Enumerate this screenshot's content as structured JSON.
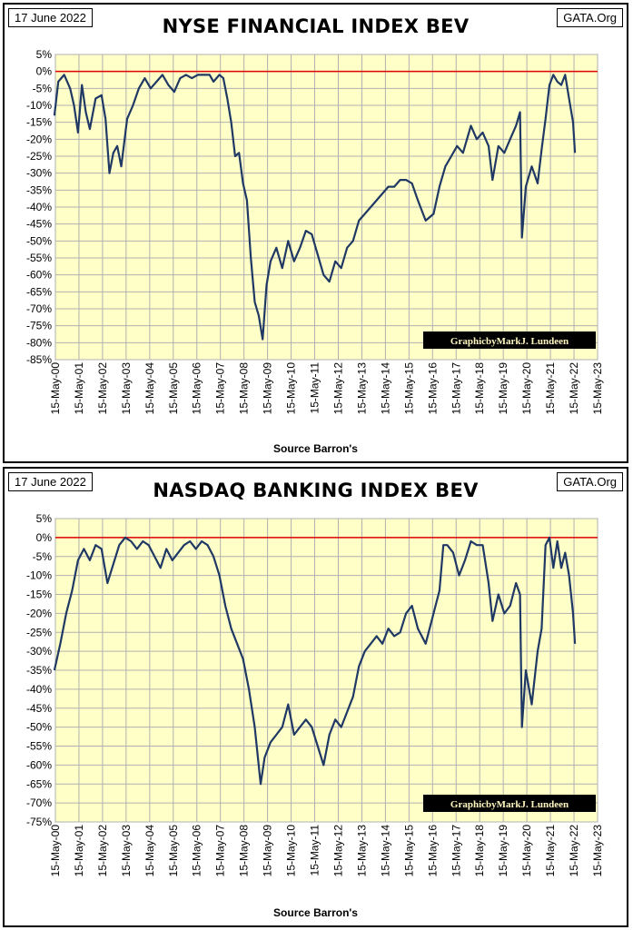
{
  "chart_data": [
    {
      "type": "line",
      "date_label": "17 June 2022",
      "site_label": "GATA.Org",
      "title": "NYSE FINANCIAL INDEX BEV",
      "source": "Source Barron's",
      "credit": "GraphicbyMarkJ. Lundeen",
      "ylim": [
        -85,
        5
      ],
      "y_ticks": [
        "5%",
        "0%",
        "-5%",
        "-10%",
        "-15%",
        "-20%",
        "-25%",
        "-30%",
        "-35%",
        "-40%",
        "-45%",
        "-50%",
        "-55%",
        "-60%",
        "-65%",
        "-70%",
        "-75%",
        "-80%",
        "-85%"
      ],
      "x_ticks": [
        "15-May-00",
        "15-May-01",
        "15-May-02",
        "15-May-03",
        "15-May-04",
        "15-May-05",
        "15-May-06",
        "15-May-07",
        "15-May-08",
        "15-May-09",
        "15-May-10",
        "15-May-11",
        "15-May-12",
        "15-May-13",
        "15-May-14",
        "15-May-15",
        "15-May-16",
        "15-May-17",
        "15-May-18",
        "15-May-19",
        "15-May-20",
        "15-May-21",
        "15-May-22",
        "15-May-23"
      ],
      "grid": true,
      "colors": {
        "plot_bg": "#ffffc8",
        "line": "#1f3864",
        "zero_line": "#e00000",
        "grid": "#b0b0b0"
      },
      "x": [
        "2000-05",
        "2000-07",
        "2000-10",
        "2001-01",
        "2001-03",
        "2001-05",
        "2001-07",
        "2001-09",
        "2001-11",
        "2002-02",
        "2002-05",
        "2002-07",
        "2002-09",
        "2002-11",
        "2003-01",
        "2003-03",
        "2003-06",
        "2003-09",
        "2003-12",
        "2004-03",
        "2004-06",
        "2004-09",
        "2004-12",
        "2005-03",
        "2005-06",
        "2005-09",
        "2005-12",
        "2006-03",
        "2006-06",
        "2006-09",
        "2006-12",
        "2007-02",
        "2007-05",
        "2007-07",
        "2007-09",
        "2007-11",
        "2008-01",
        "2008-03",
        "2008-05",
        "2008-07",
        "2008-09",
        "2008-11",
        "2009-01",
        "2009-03",
        "2009-05",
        "2009-07",
        "2009-10",
        "2010-01",
        "2010-04",
        "2010-07",
        "2010-10",
        "2011-01",
        "2011-04",
        "2011-07",
        "2011-10",
        "2012-01",
        "2012-04",
        "2012-07",
        "2012-10",
        "2013-01",
        "2013-04",
        "2013-07",
        "2013-10",
        "2014-01",
        "2014-04",
        "2014-07",
        "2014-10",
        "2015-01",
        "2015-04",
        "2015-07",
        "2015-10",
        "2016-02",
        "2016-06",
        "2016-09",
        "2016-12",
        "2017-03",
        "2017-06",
        "2017-09",
        "2018-01",
        "2018-04",
        "2018-07",
        "2018-10",
        "2018-12",
        "2019-03",
        "2019-06",
        "2019-09",
        "2019-12",
        "2020-02",
        "2020-03",
        "2020-05",
        "2020-08",
        "2020-11",
        "2021-01",
        "2021-03",
        "2021-05",
        "2021-07",
        "2021-09",
        "2021-11",
        "2022-01",
        "2022-03",
        "2022-05",
        "2022-06"
      ],
      "values": [
        -13,
        -3,
        -1,
        -5,
        -10,
        -18,
        -4,
        -12,
        -17,
        -8,
        -7,
        -14,
        -30,
        -24,
        -22,
        -28,
        -14,
        -10,
        -5,
        -2,
        -5,
        -3,
        -1,
        -4,
        -6,
        -2,
        -1,
        -2,
        -1,
        -1,
        -1,
        -3,
        -1,
        -2,
        -8,
        -15,
        -25,
        -24,
        -33,
        -38,
        -55,
        -68,
        -72,
        -79,
        -63,
        -56,
        -52,
        -58,
        -50,
        -56,
        -52,
        -47,
        -48,
        -54,
        -60,
        -62,
        -56,
        -58,
        -52,
        -50,
        -44,
        -42,
        -40,
        -38,
        -36,
        -34,
        -34,
        -32,
        -32,
        -33,
        -38,
        -44,
        -42,
        -34,
        -28,
        -25,
        -22,
        -24,
        -16,
        -20,
        -18,
        -22,
        -32,
        -22,
        -24,
        -20,
        -16,
        -12,
        -49,
        -34,
        -28,
        -33,
        -23,
        -14,
        -4,
        -1,
        -3,
        -4,
        -1,
        -8,
        -15,
        -24
      ]
    },
    {
      "type": "line",
      "date_label": "17 June 2022",
      "site_label": "GATA.Org",
      "title": "NASDAQ BANKING INDEX BEV",
      "source": "Source Barron's",
      "credit": "GraphicbyMarkJ. Lundeen",
      "ylim": [
        -75,
        5
      ],
      "y_ticks": [
        "5%",
        "0%",
        "-5%",
        "-10%",
        "-15%",
        "-20%",
        "-25%",
        "-30%",
        "-35%",
        "-40%",
        "-45%",
        "-50%",
        "-55%",
        "-60%",
        "-65%",
        "-70%",
        "-75%"
      ],
      "x_ticks": [
        "15-May-00",
        "15-May-01",
        "15-May-02",
        "15-May-03",
        "15-May-04",
        "15-May-05",
        "15-May-06",
        "15-May-07",
        "15-May-08",
        "15-May-09",
        "15-May-10",
        "15-May-11",
        "15-May-12",
        "15-May-13",
        "15-May-14",
        "15-May-15",
        "15-May-16",
        "15-May-17",
        "15-May-18",
        "15-May-19",
        "15-May-20",
        "15-May-21",
        "15-May-22",
        "15-May-23"
      ],
      "grid": true,
      "colors": {
        "plot_bg": "#ffffc8",
        "line": "#1f3864",
        "zero_line": "#e00000",
        "grid": "#b0b0b0"
      },
      "x": [
        "2000-05",
        "2000-08",
        "2000-11",
        "2001-02",
        "2001-05",
        "2001-08",
        "2001-11",
        "2002-02",
        "2002-05",
        "2002-08",
        "2002-11",
        "2003-02",
        "2003-05",
        "2003-08",
        "2003-11",
        "2004-02",
        "2004-05",
        "2004-08",
        "2004-11",
        "2005-02",
        "2005-05",
        "2005-08",
        "2005-11",
        "2006-02",
        "2006-05",
        "2006-08",
        "2006-11",
        "2007-02",
        "2007-05",
        "2007-08",
        "2007-11",
        "2008-02",
        "2008-05",
        "2008-08",
        "2008-11",
        "2009-02",
        "2009-04",
        "2009-07",
        "2009-10",
        "2010-01",
        "2010-04",
        "2010-07",
        "2010-10",
        "2011-01",
        "2011-04",
        "2011-07",
        "2011-10",
        "2012-01",
        "2012-04",
        "2012-07",
        "2012-10",
        "2013-01",
        "2013-04",
        "2013-07",
        "2013-10",
        "2014-01",
        "2014-04",
        "2014-07",
        "2014-10",
        "2015-01",
        "2015-04",
        "2015-07",
        "2015-10",
        "2016-02",
        "2016-06",
        "2016-09",
        "2016-11",
        "2017-01",
        "2017-04",
        "2017-07",
        "2017-10",
        "2018-01",
        "2018-04",
        "2018-07",
        "2018-10",
        "2018-12",
        "2019-03",
        "2019-06",
        "2019-09",
        "2019-12",
        "2020-02",
        "2020-03",
        "2020-05",
        "2020-08",
        "2020-11",
        "2021-01",
        "2021-03",
        "2021-05",
        "2021-07",
        "2021-09",
        "2021-11",
        "2022-01",
        "2022-03",
        "2022-05",
        "2022-06"
      ],
      "values": [
        -35,
        -28,
        -20,
        -14,
        -6,
        -3,
        -6,
        -2,
        -3,
        -12,
        -7,
        -2,
        0,
        -1,
        -3,
        -1,
        -2,
        -5,
        -8,
        -3,
        -6,
        -4,
        -2,
        -1,
        -3,
        -1,
        -2,
        -5,
        -10,
        -18,
        -24,
        -28,
        -32,
        -40,
        -50,
        -65,
        -58,
        -54,
        -52,
        -50,
        -44,
        -52,
        -50,
        -48,
        -50,
        -55,
        -60,
        -52,
        -48,
        -50,
        -46,
        -42,
        -34,
        -30,
        -28,
        -26,
        -28,
        -24,
        -26,
        -25,
        -20,
        -18,
        -24,
        -28,
        -20,
        -14,
        -2,
        -2,
        -4,
        -10,
        -6,
        -1,
        -2,
        -2,
        -12,
        -22,
        -15,
        -20,
        -18,
        -12,
        -15,
        -50,
        -35,
        -44,
        -30,
        -24,
        -2,
        0,
        -8,
        -1,
        -8,
        -4,
        -10,
        -20,
        -28
      ]
    }
  ]
}
